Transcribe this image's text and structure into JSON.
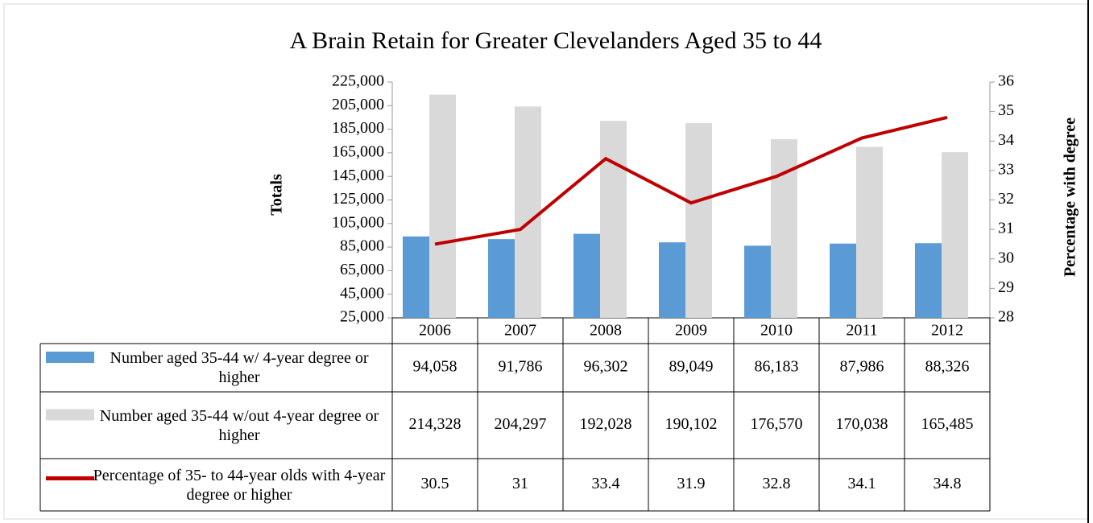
{
  "chart_data": {
    "type": "bar-line",
    "title": "A Brain Retain for Greater Clevelanders Aged 35 to 44",
    "ylabel": "Totals",
    "y2label": "Percentage with degree",
    "categories": [
      "2006",
      "2007",
      "2008",
      "2009",
      "2010",
      "2011",
      "2012"
    ],
    "ylim": [
      25000,
      225000
    ],
    "yticks": [
      {
        "value": 25000,
        "label": "25,000"
      },
      {
        "value": 45000,
        "label": "45,000"
      },
      {
        "value": 65000,
        "label": "65,000"
      },
      {
        "value": 85000,
        "label": "85,000"
      },
      {
        "value": 105000,
        "label": "105,000"
      },
      {
        "value": 125000,
        "label": "125,000"
      },
      {
        "value": 145000,
        "label": "145,000"
      },
      {
        "value": 165000,
        "label": "165,000"
      },
      {
        "value": 185000,
        "label": "185,000"
      },
      {
        "value": 205000,
        "label": "205,000"
      },
      {
        "value": 225000,
        "label": "225,000"
      }
    ],
    "y2lim": [
      28,
      36
    ],
    "y2ticks": [
      28,
      29,
      30,
      31,
      32,
      33,
      34,
      35,
      36
    ],
    "series": [
      {
        "name": "Number aged 35-44 w/ 4-year degree or higher",
        "type": "bar",
        "color": "#5b9bd5",
        "values": [
          94058,
          91786,
          96302,
          89049,
          86183,
          87986,
          88326
        ],
        "value_labels": [
          "94,058",
          "91,786",
          "96,302",
          "89,049",
          "86,183",
          "87,986",
          "88,326"
        ]
      },
      {
        "name": "Number aged 35-44 w/out 4-year degree or higher",
        "type": "bar",
        "color": "#d9d9d9",
        "values": [
          214328,
          204297,
          192028,
          190102,
          176570,
          170038,
          165485
        ],
        "value_labels": [
          "214,328",
          "204,297",
          "192,028",
          "190,102",
          "176,570",
          "170,038",
          "165,485"
        ]
      },
      {
        "name": "Percentage of 35- to 44-year olds with 4-year degree or higher",
        "type": "line",
        "axis": "y2",
        "color": "#c00000",
        "values": [
          30.5,
          31,
          33.4,
          31.9,
          32.8,
          34.1,
          34.8
        ]
      }
    ]
  }
}
